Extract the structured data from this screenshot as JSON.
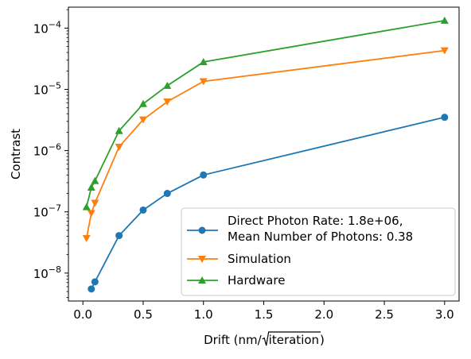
{
  "chart_data": {
    "type": "line",
    "title": "",
    "xlabel_prefix": "Drift (nm/",
    "xlabel_radicand": "iteration",
    "xlabel_suffix": ")",
    "ylabel": "Contrast",
    "yscale": "log",
    "xlim": [
      -0.12,
      3.12
    ],
    "ylim": [
      3.5e-09,
      0.00022
    ],
    "grid": false,
    "legend_position": "lower-right",
    "x_ticks": [
      {
        "value": 0.0,
        "label": "0.0"
      },
      {
        "value": 0.5,
        "label": "0.5"
      },
      {
        "value": 1.0,
        "label": "1.0"
      },
      {
        "value": 1.5,
        "label": "1.5"
      },
      {
        "value": 2.0,
        "label": "2.0"
      },
      {
        "value": 2.5,
        "label": "2.5"
      },
      {
        "value": 3.0,
        "label": "3.0"
      }
    ],
    "y_ticks": [
      {
        "value": 1e-08,
        "base": "10",
        "exp": "−8"
      },
      {
        "value": 1e-07,
        "base": "10",
        "exp": "−7"
      },
      {
        "value": 1e-06,
        "base": "10",
        "exp": "−6"
      },
      {
        "value": 1e-05,
        "base": "10",
        "exp": "−5"
      },
      {
        "value": 0.0001,
        "base": "10",
        "exp": "−4"
      }
    ],
    "series": [
      {
        "name_lines": [
          "Direct Photon Rate: 1.8e+06,",
          "Mean Number of Photons: 0.38"
        ],
        "color": "#1f77b4",
        "marker": "circle",
        "x": [
          0.07,
          0.1,
          0.3,
          0.5,
          0.7,
          1.0,
          3.0
        ],
        "y": [
          5.5e-09,
          7.2e-09,
          4.1e-08,
          1.07e-07,
          2e-07,
          4e-07,
          3.5e-06
        ]
      },
      {
        "name_lines": [
          "Simulation"
        ],
        "color": "#ff7f0e",
        "marker": "triangle-down",
        "x": [
          0.03,
          0.07,
          0.1,
          0.3,
          0.5,
          0.7,
          1.0,
          3.0
        ],
        "y": [
          3.7e-08,
          9.5e-08,
          1.4e-07,
          1.15e-06,
          3.2e-06,
          6.3e-06,
          1.35e-05,
          4.3e-05
        ]
      },
      {
        "name_lines": [
          "Hardware"
        ],
        "color": "#2ca02c",
        "marker": "triangle-up",
        "x": [
          0.03,
          0.07,
          0.1,
          0.3,
          0.5,
          0.7,
          1.0,
          3.0
        ],
        "y": [
          1.2e-07,
          2.5e-07,
          3.2e-07,
          2.1e-06,
          5.8e-06,
          1.15e-05,
          2.8e-05,
          0.000133
        ]
      }
    ]
  }
}
